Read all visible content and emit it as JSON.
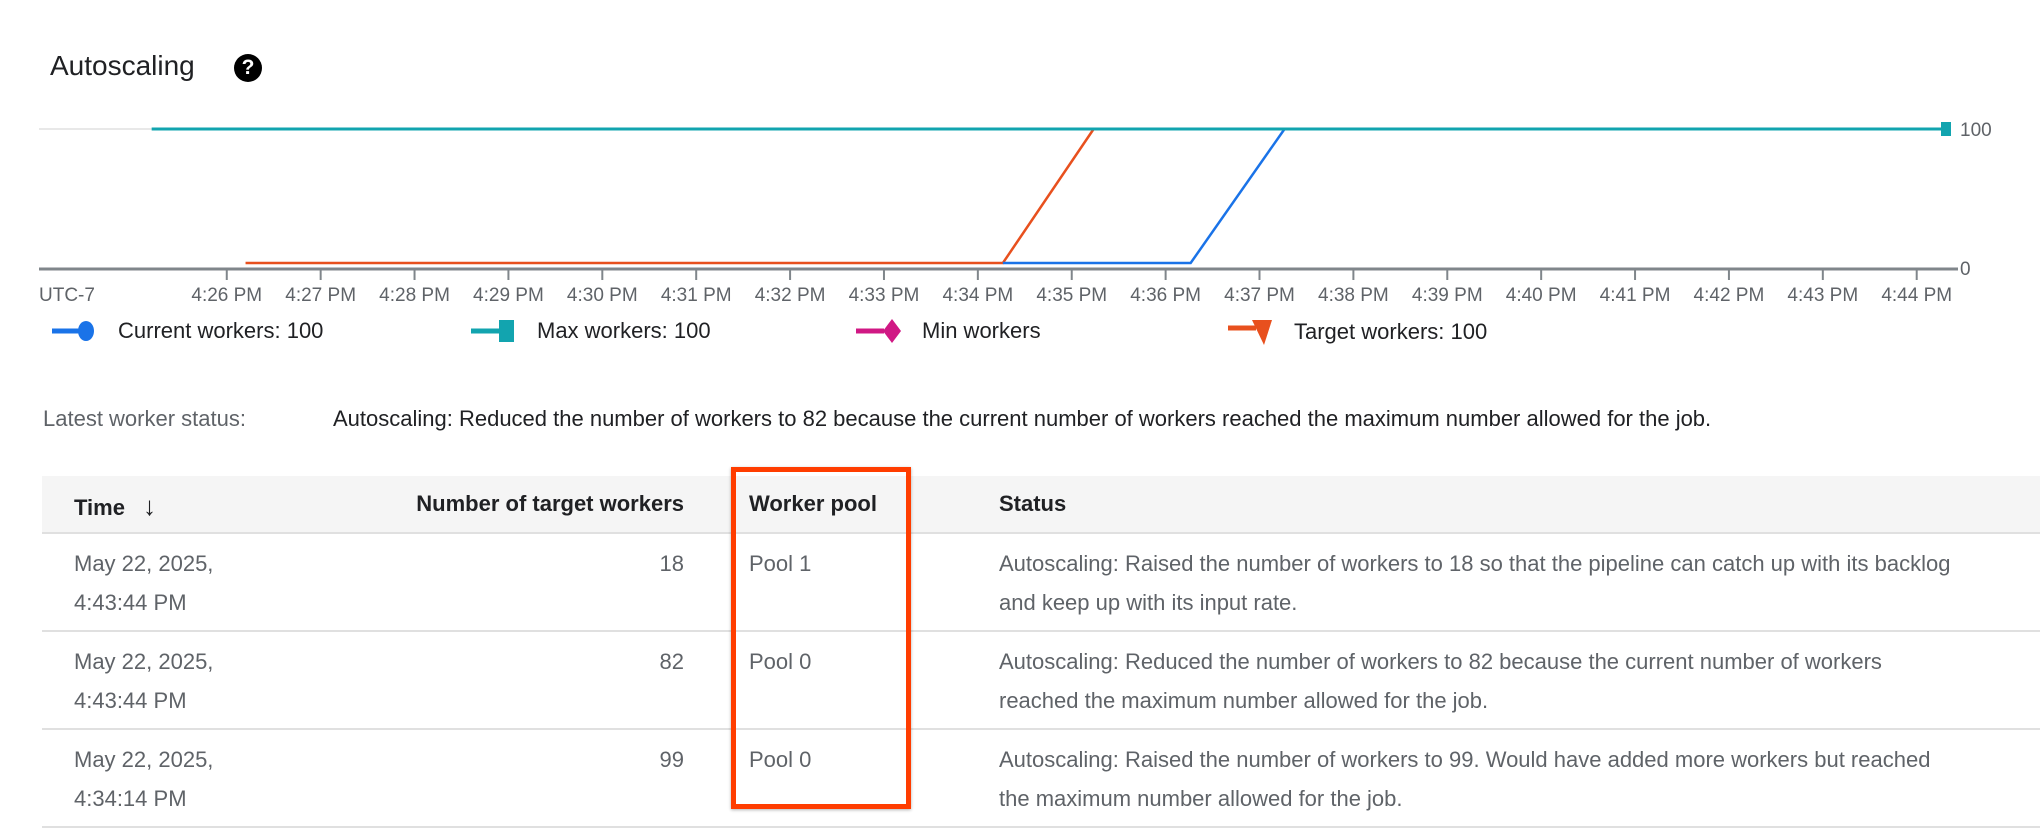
{
  "header": {
    "title": "Autoscaling",
    "help_icon": "help-circle-icon"
  },
  "chart_data": {
    "type": "line",
    "timezone_label": "UTC-7",
    "x_ticks": [
      "4:26 PM",
      "4:27 PM",
      "4:28 PM",
      "4:29 PM",
      "4:30 PM",
      "4:31 PM",
      "4:32 PM",
      "4:33 PM",
      "4:34 PM",
      "4:35 PM",
      "4:36 PM",
      "4:37 PM",
      "4:38 PM",
      "4:39 PM",
      "4:40 PM",
      "4:41 PM",
      "4:42 PM",
      "4:43 PM",
      "4:44 PM"
    ],
    "x_range": [
      "16:24:00",
      "16:44:20"
    ],
    "y_ticks": [
      "0",
      "100"
    ],
    "ylim": [
      0,
      100
    ],
    "legend_placement": "bottom",
    "series": [
      {
        "name": "Max workers",
        "legend": "Max workers:  100",
        "color": "#12a4af",
        "marker": "square",
        "points": [
          [
            "16:25:12",
            100
          ],
          [
            "16:44:20",
            100
          ]
        ]
      },
      {
        "name": "Target workers",
        "legend": "Target workers:  100",
        "color": "#e8501e",
        "marker": "triangle-down",
        "points": [
          [
            "16:26:12",
            0
          ],
          [
            "16:34:16",
            0
          ],
          [
            "16:35:14",
            100
          ]
        ]
      },
      {
        "name": "Current workers",
        "legend": "Current workers:  100",
        "color": "#1a73e8",
        "marker": "circle",
        "points": [
          [
            "16:34:16",
            0
          ],
          [
            "16:36:16",
            0
          ],
          [
            "16:37:16",
            100
          ]
        ]
      },
      {
        "name": "Min workers",
        "legend": "Min workers",
        "color": "#d01884",
        "marker": "diamond",
        "points": []
      }
    ]
  },
  "latest_status": {
    "label": "Latest worker status:",
    "text": "Autoscaling: Reduced the number of workers to 82 because the current number of workers reached the maximum number allowed for the job."
  },
  "table": {
    "headers": {
      "time": "Time",
      "target": "Number of target workers",
      "pool": "Worker pool",
      "status": "Status"
    },
    "sort_icon": "arrow-down-icon",
    "rows": [
      {
        "date": "May 22, 2025,",
        "time": "4:43:44 PM",
        "target": "18",
        "pool": "Pool 1",
        "status": "Autoscaling: Raised the number of workers to 18 so that the pipeline can catch up with its backlog and keep up with its input rate."
      },
      {
        "date": "May 22, 2025,",
        "time": "4:43:44 PM",
        "target": "82",
        "pool": "Pool 0",
        "status": "Autoscaling: Reduced the number of workers to 82 because the current number of workers reached the maximum number allowed for the job."
      },
      {
        "date": "May 22, 2025,",
        "time": "4:34:14 PM",
        "target": "99",
        "pool": "Pool 0",
        "status": "Autoscaling: Raised the number of workers to 99. Would have added more workers but reached the maximum number allowed for the job."
      }
    ]
  },
  "highlight_color": "#ff3d00"
}
